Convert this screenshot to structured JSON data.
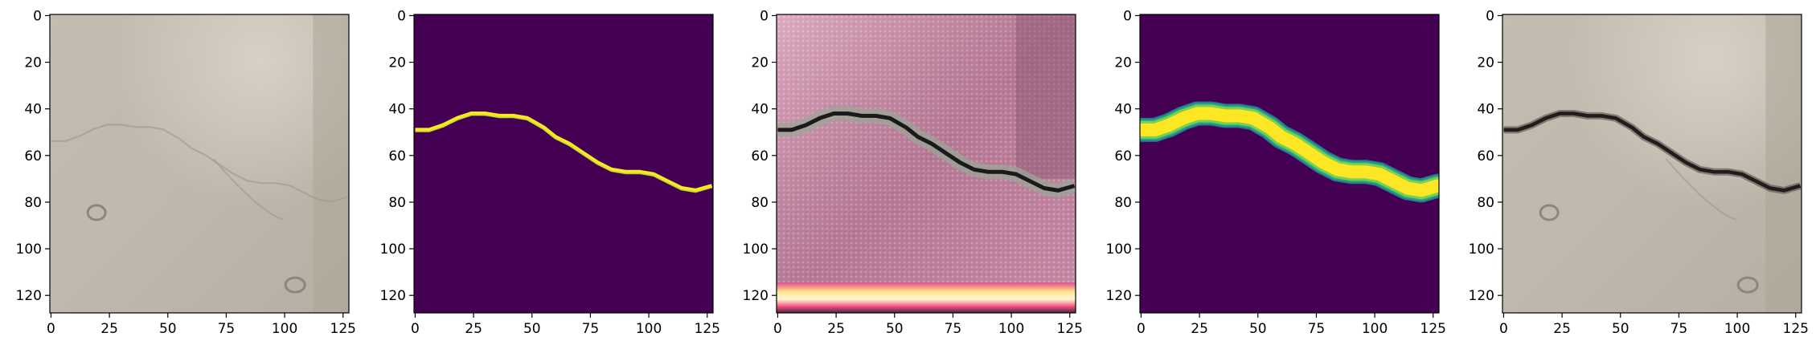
{
  "figure": {
    "panel_count": 5,
    "panels": [
      {
        "name": "input-concrete-photo",
        "content": "concrete-photo-faint-crack",
        "colormap": "none"
      },
      {
        "name": "crack-mask",
        "content": "binary-crack-mask",
        "colormap": "viridis",
        "colors": {
          "background": "#440154",
          "crack": "#fde725"
        }
      },
      {
        "name": "generated-texture",
        "content": "pink-synthetic-texture-with-dark-crack",
        "colormap": "none"
      },
      {
        "name": "blurred-crack-mask",
        "content": "gaussian-smoothed-crack-mask",
        "colormap": "viridis",
        "colors": {
          "background": "#440154",
          "crack": "#fde725"
        }
      },
      {
        "name": "output-concrete-photo",
        "content": "concrete-photo-dark-crack",
        "colormap": "none"
      }
    ],
    "x_ticks": [
      "0",
      "25",
      "50",
      "75",
      "100",
      "125"
    ],
    "y_ticks": [
      "0",
      "20",
      "40",
      "60",
      "80",
      "100",
      "120"
    ],
    "crack_path_y": [
      {
        "x": 0,
        "y": 49
      },
      {
        "x": 6,
        "y": 49
      },
      {
        "x": 12,
        "y": 47
      },
      {
        "x": 18,
        "y": 44
      },
      {
        "x": 24,
        "y": 42
      },
      {
        "x": 30,
        "y": 42
      },
      {
        "x": 36,
        "y": 43
      },
      {
        "x": 42,
        "y": 43
      },
      {
        "x": 48,
        "y": 44
      },
      {
        "x": 55,
        "y": 48
      },
      {
        "x": 60,
        "y": 52
      },
      {
        "x": 66,
        "y": 55
      },
      {
        "x": 72,
        "y": 59
      },
      {
        "x": 78,
        "y": 63
      },
      {
        "x": 84,
        "y": 66
      },
      {
        "x": 90,
        "y": 67
      },
      {
        "x": 96,
        "y": 67
      },
      {
        "x": 102,
        "y": 68
      },
      {
        "x": 108,
        "y": 71
      },
      {
        "x": 114,
        "y": 74
      },
      {
        "x": 120,
        "y": 75
      },
      {
        "x": 127,
        "y": 73
      }
    ]
  }
}
